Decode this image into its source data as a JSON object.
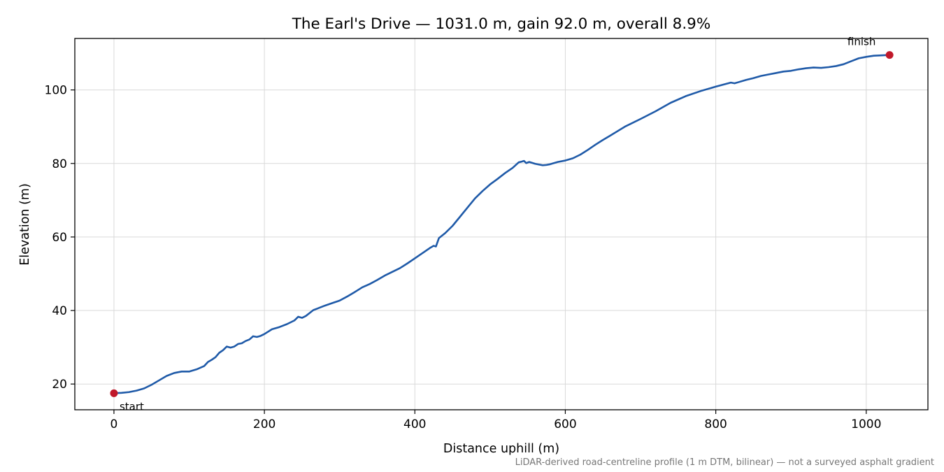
{
  "chart_data": {
    "type": "line",
    "title": "The Earl's Drive — 1031.0 m, gain 92.0 m, overall 8.9%",
    "xlabel": "Distance uphill (m)",
    "ylabel": "Elevation (m)",
    "xlim": [
      -52,
      1082
    ],
    "ylim": [
      13,
      114
    ],
    "xticks": [
      0,
      200,
      400,
      600,
      800,
      1000
    ],
    "yticks": [
      20,
      40,
      60,
      80,
      100
    ],
    "grid": true,
    "line_color": "#1f5aa8",
    "marker_color": "#c0182a",
    "series": [
      {
        "x": [
          0,
          10,
          20,
          30,
          40,
          50,
          60,
          70,
          80,
          90,
          100,
          110,
          120,
          125,
          130,
          135,
          140,
          145,
          150,
          155,
          160,
          165,
          170,
          175,
          180,
          185,
          190,
          195,
          200,
          210,
          220,
          230,
          240,
          245,
          250,
          255,
          260,
          265,
          270,
          280,
          290,
          300,
          310,
          320,
          330,
          340,
          350,
          360,
          370,
          380,
          390,
          400,
          410,
          420,
          425,
          428,
          432,
          440,
          450,
          460,
          470,
          480,
          490,
          500,
          510,
          520,
          530,
          538,
          542,
          545,
          548,
          552,
          560,
          570,
          575,
          580,
          590,
          600,
          610,
          620,
          630,
          640,
          650,
          660,
          680,
          700,
          720,
          740,
          760,
          780,
          800,
          820,
          825,
          830,
          840,
          850,
          860,
          870,
          880,
          890,
          900,
          910,
          920,
          930,
          940,
          950,
          960,
          970,
          980,
          990,
          1000,
          1010,
          1020,
          1031
        ],
        "y": [
          17.5,
          17.6,
          17.8,
          18.2,
          18.8,
          19.8,
          21.0,
          22.2,
          23.0,
          23.4,
          23.4,
          24.0,
          24.9,
          26.0,
          26.6,
          27.3,
          28.5,
          29.2,
          30.2,
          29.9,
          30.2,
          30.9,
          31.1,
          31.7,
          32.1,
          33.0,
          32.8,
          33.1,
          33.6,
          34.9,
          35.5,
          36.3,
          37.3,
          38.3,
          38.0,
          38.5,
          39.3,
          40.1,
          40.5,
          41.3,
          42.0,
          42.7,
          43.8,
          45.0,
          46.3,
          47.2,
          48.3,
          49.5,
          50.5,
          51.5,
          52.8,
          54.2,
          55.6,
          57.0,
          57.6,
          57.4,
          59.7,
          61.0,
          63.0,
          65.5,
          68.0,
          70.5,
          72.5,
          74.3,
          75.8,
          77.4,
          78.8,
          80.3,
          80.5,
          80.7,
          80.1,
          80.4,
          79.9,
          79.5,
          79.6,
          79.8,
          80.4,
          80.8,
          81.4,
          82.4,
          83.7,
          85.1,
          86.4,
          87.6,
          90.1,
          92.1,
          94.2,
          96.5,
          98.3,
          99.7,
          100.9,
          102.0,
          101.8,
          102.1,
          102.7,
          103.2,
          103.8,
          104.2,
          104.6,
          105.0,
          105.2,
          105.6,
          105.9,
          106.1,
          106.0,
          106.2,
          106.5,
          107.0,
          107.8,
          108.6,
          109.0,
          109.3,
          109.4,
          109.5
        ]
      }
    ],
    "annotations": [
      {
        "text": "start",
        "x": 0,
        "y": 17.5
      },
      {
        "text": "finish",
        "x": 1031,
        "y": 109.5
      }
    ],
    "footnote": "LiDAR-derived road-centreline profile (1 m DTM, bilinear) — not a surveyed asphalt gradient"
  }
}
